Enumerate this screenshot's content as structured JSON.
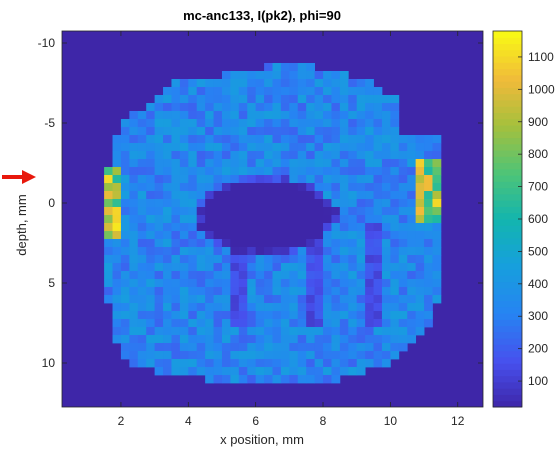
{
  "chart_data": {
    "type": "heatmap",
    "title": "mc-anc133, I(pk2), phi=90",
    "xlabel": "x position, mm",
    "ylabel": "depth, mm",
    "xlim": [
      0.25,
      12.75
    ],
    "ylim": [
      -10.75,
      12.75
    ],
    "y_reversed": true,
    "x_ticks": [
      2,
      4,
      6,
      8,
      10,
      12
    ],
    "y_ticks": [
      -10,
      -5,
      0,
      5,
      10
    ],
    "colorbar": {
      "min": 20,
      "max": 1180,
      "ticks": [
        100,
        200,
        300,
        400,
        500,
        600,
        700,
        800,
        900,
        1000,
        1100
      ],
      "colormap": "parula"
    },
    "background_value": 20,
    "region": {
      "outline": [
        [
          3.6,
          -7.5
        ],
        [
          7.2,
          -8.8
        ],
        [
          9.2,
          -7.8
        ],
        [
          10.3,
          -6.4
        ],
        [
          10.3,
          -4.4
        ],
        [
          11.5,
          -4.1
        ],
        [
          11.6,
          0.5
        ],
        [
          11.4,
          5.5
        ],
        [
          11.3,
          7.6
        ],
        [
          10.0,
          10.0
        ],
        [
          8.0,
          11.3
        ],
        [
          4.8,
          11.1
        ],
        [
          2.2,
          10.2
        ],
        [
          1.7,
          8.3
        ],
        [
          1.4,
          0.0
        ],
        [
          1.6,
          -2.2
        ],
        [
          2.0,
          -5.0
        ]
      ],
      "typical_value": 330
    },
    "hole": {
      "center": [
        6.3,
        0.8
      ],
      "radius_x": 2.1,
      "radius_y": 2.5,
      "value": 20
    },
    "edge_hotspots": [
      {
        "x": 1.5,
        "y_range": [
          -2.0,
          2.0
        ],
        "peak_value": 1150
      },
      {
        "x": 11.2,
        "y_range": [
          -2.5,
          1.0
        ],
        "peak_value": 1100
      }
    ]
  },
  "annotation": {
    "arrow_color": "#e8180c"
  }
}
